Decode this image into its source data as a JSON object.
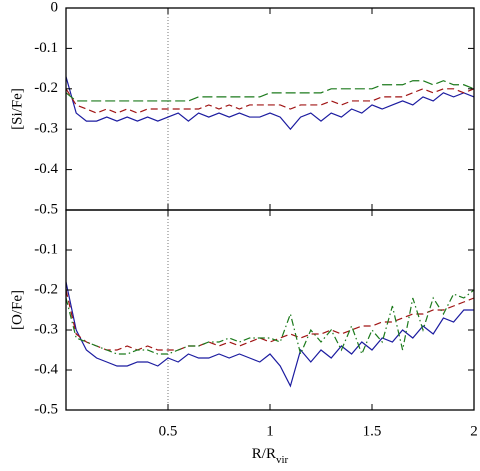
{
  "chart_data": [
    {
      "type": "line",
      "ylabel": "[Si/Fe]",
      "xlim": [
        0,
        2
      ],
      "ylim": [
        -0.5,
        0
      ],
      "xticks": [
        0.5,
        1,
        1.5,
        2
      ],
      "yticks": [
        0,
        -0.1,
        -0.2,
        -0.3,
        -0.4,
        -0.5
      ],
      "show_xtick_labels": false,
      "vline_x": 0.5,
      "x": [
        0,
        0.05,
        0.1,
        0.15,
        0.2,
        0.25,
        0.3,
        0.35,
        0.4,
        0.45,
        0.5,
        0.55,
        0.6,
        0.65,
        0.7,
        0.75,
        0.8,
        0.85,
        0.9,
        0.95,
        1,
        1.05,
        1.1,
        1.15,
        1.2,
        1.25,
        1.3,
        1.35,
        1.4,
        1.45,
        1.5,
        1.55,
        1.6,
        1.65,
        1.7,
        1.75,
        1.8,
        1.85,
        1.9,
        1.95,
        2
      ],
      "series": [
        {
          "color": "#1c1ca0",
          "style": "solid",
          "values": [
            -0.17,
            -0.26,
            -0.28,
            -0.28,
            -0.27,
            -0.28,
            -0.27,
            -0.28,
            -0.27,
            -0.28,
            -0.27,
            -0.26,
            -0.28,
            -0.26,
            -0.27,
            -0.26,
            -0.27,
            -0.26,
            -0.27,
            -0.27,
            -0.26,
            -0.27,
            -0.3,
            -0.27,
            -0.26,
            -0.28,
            -0.26,
            -0.27,
            -0.25,
            -0.26,
            -0.24,
            -0.25,
            -0.24,
            -0.23,
            -0.24,
            -0.22,
            -0.23,
            -0.21,
            -0.22,
            -0.21,
            -0.22
          ]
        },
        {
          "color": "#a01414",
          "style": "dashed",
          "values": [
            -0.2,
            -0.24,
            -0.25,
            -0.26,
            -0.25,
            -0.26,
            -0.25,
            -0.26,
            -0.25,
            -0.25,
            -0.25,
            -0.25,
            -0.25,
            -0.25,
            -0.24,
            -0.25,
            -0.24,
            -0.25,
            -0.24,
            -0.24,
            -0.24,
            -0.24,
            -0.25,
            -0.24,
            -0.24,
            -0.24,
            -0.23,
            -0.24,
            -0.23,
            -0.23,
            -0.23,
            -0.22,
            -0.22,
            -0.22,
            -0.21,
            -0.2,
            -0.21,
            -0.2,
            -0.2,
            -0.21,
            -0.2
          ]
        },
        {
          "color": "#1c7a1c",
          "style": "longdash",
          "values": [
            -0.21,
            -0.23,
            -0.23,
            -0.23,
            -0.23,
            -0.23,
            -0.23,
            -0.23,
            -0.23,
            -0.23,
            -0.23,
            -0.23,
            -0.23,
            -0.22,
            -0.22,
            -0.22,
            -0.22,
            -0.22,
            -0.22,
            -0.22,
            -0.21,
            -0.21,
            -0.21,
            -0.21,
            -0.21,
            -0.21,
            -0.2,
            -0.2,
            -0.2,
            -0.2,
            -0.2,
            -0.19,
            -0.19,
            -0.19,
            -0.18,
            -0.18,
            -0.19,
            -0.18,
            -0.19,
            -0.19,
            -0.2
          ]
        }
      ]
    },
    {
      "type": "line",
      "ylabel": "[O/Fe]",
      "xlabel": {
        "main": "R/R",
        "sub": "vir"
      },
      "xlim": [
        0,
        2
      ],
      "ylim": [
        -0.5,
        0
      ],
      "xticks": [
        0.5,
        1,
        1.5,
        2
      ],
      "yticks": [
        -0.1,
        -0.2,
        -0.3,
        -0.4,
        -0.5
      ],
      "show_xtick_labels": true,
      "vline_x": 0.5,
      "x": [
        0,
        0.05,
        0.1,
        0.15,
        0.2,
        0.25,
        0.3,
        0.35,
        0.4,
        0.45,
        0.5,
        0.55,
        0.6,
        0.65,
        0.7,
        0.75,
        0.8,
        0.85,
        0.9,
        0.95,
        1,
        1.05,
        1.1,
        1.15,
        1.2,
        1.25,
        1.3,
        1.35,
        1.4,
        1.45,
        1.5,
        1.55,
        1.6,
        1.65,
        1.7,
        1.75,
        1.8,
        1.85,
        1.9,
        1.95,
        2
      ],
      "series": [
        {
          "color": "#1c1ca0",
          "style": "solid",
          "values": [
            -0.18,
            -0.3,
            -0.35,
            -0.37,
            -0.38,
            -0.39,
            -0.39,
            -0.38,
            -0.38,
            -0.39,
            -0.37,
            -0.38,
            -0.36,
            -0.37,
            -0.37,
            -0.36,
            -0.37,
            -0.36,
            -0.37,
            -0.38,
            -0.36,
            -0.39,
            -0.44,
            -0.35,
            -0.38,
            -0.35,
            -0.37,
            -0.34,
            -0.36,
            -0.33,
            -0.35,
            -0.32,
            -0.33,
            -0.3,
            -0.32,
            -0.29,
            -0.31,
            -0.27,
            -0.28,
            -0.25,
            -0.25
          ]
        },
        {
          "color": "#a01414",
          "style": "dashed",
          "values": [
            -0.2,
            -0.31,
            -0.33,
            -0.34,
            -0.35,
            -0.35,
            -0.34,
            -0.35,
            -0.34,
            -0.35,
            -0.35,
            -0.35,
            -0.34,
            -0.34,
            -0.33,
            -0.34,
            -0.33,
            -0.34,
            -0.33,
            -0.32,
            -0.33,
            -0.32,
            -0.31,
            -0.32,
            -0.31,
            -0.31,
            -0.3,
            -0.31,
            -0.3,
            -0.29,
            -0.29,
            -0.28,
            -0.28,
            -0.27,
            -0.26,
            -0.26,
            -0.25,
            -0.25,
            -0.24,
            -0.23,
            -0.22
          ]
        },
        {
          "color": "#1c7a1c",
          "style": "dashdot",
          "values": [
            -0.22,
            -0.32,
            -0.33,
            -0.34,
            -0.35,
            -0.36,
            -0.36,
            -0.35,
            -0.35,
            -0.36,
            -0.36,
            -0.35,
            -0.34,
            -0.34,
            -0.33,
            -0.33,
            -0.32,
            -0.33,
            -0.32,
            -0.32,
            -0.32,
            -0.33,
            -0.26,
            -0.36,
            -0.3,
            -0.33,
            -0.3,
            -0.35,
            -0.29,
            -0.36,
            -0.3,
            -0.33,
            -0.24,
            -0.35,
            -0.22,
            -0.3,
            -0.22,
            -0.26,
            -0.21,
            -0.22,
            -0.2
          ]
        }
      ]
    }
  ]
}
